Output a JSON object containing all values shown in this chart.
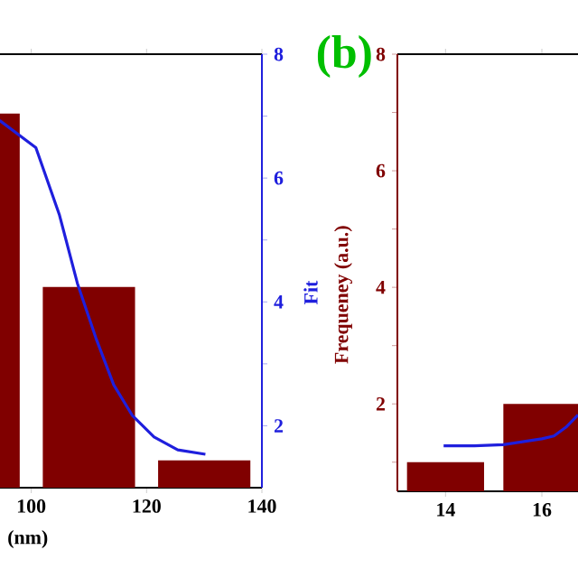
{
  "chart_data": [
    {
      "type": "bar",
      "xlabel": "(nm)",
      "y2label": "Fit",
      "x": [
        90,
        110,
        130
      ],
      "xlim": [
        88,
        140
      ],
      "xticks": [
        100,
        120,
        140
      ],
      "y2lim": [
        1,
        8
      ],
      "y2ticks": [
        2,
        {
          "value": 3,
          "label": null
        },
        4,
        {
          "value": 5,
          "label": null
        },
        6,
        {
          "value": 7,
          "label": null
        },
        8
      ],
      "series": [
        {
          "axis": "y2",
          "color": "#800000",
          "values": [
            7.04,
            4.24,
            1.44
          ]
        },
        {
          "type": "line",
          "axis": "y2",
          "color": "#1f1fdd",
          "x": [
            94.5,
            100.8,
            104.9,
            108.0,
            111.2,
            114.3,
            117.5,
            121.3,
            125.4,
            130.2
          ],
          "values": [
            6.93,
            6.49,
            5.4,
            4.3,
            3.42,
            2.66,
            2.17,
            1.82,
            1.61,
            1.54
          ]
        }
      ]
    },
    {
      "type": "bar",
      "title": "(b)",
      "ylabel": "Frequeney (a.u.)",
      "x": [
        14,
        16
      ],
      "xlim": [
        13,
        16.75
      ],
      "xticks": [
        14,
        16
      ],
      "ylim": [
        0.5,
        8
      ],
      "yticks": [
        {
          "value": 1,
          "label": null
        },
        2,
        {
          "value": 3,
          "label": null
        },
        4,
        {
          "value": 5,
          "label": null
        },
        6,
        {
          "value": 7,
          "label": null
        },
        8
      ],
      "series": [
        {
          "color": "#800000",
          "values": [
            1,
            2
          ]
        },
        {
          "type": "line",
          "color": "#1f1fdd",
          "x": [
            13.96,
            14.6,
            15.2,
            15.6,
            16.0,
            16.25,
            16.5,
            16.75
          ],
          "values": [
            1.28,
            1.28,
            1.3,
            1.35,
            1.4,
            1.45,
            1.6,
            1.81
          ]
        }
      ]
    }
  ]
}
